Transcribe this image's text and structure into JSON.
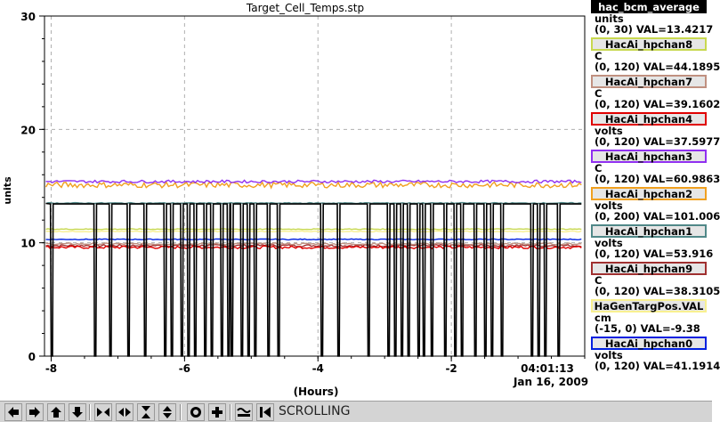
{
  "chart_data": {
    "type": "line",
    "title": "Target_Cell_Temps.stp",
    "xlabel": "(Hours)",
    "ylabel": "units",
    "xlim": [
      -8.1,
      0
    ],
    "ylim": [
      0,
      30
    ],
    "x_ticks": [
      -8,
      -6,
      -4,
      -2
    ],
    "x_tick_labels": [
      "-8",
      "-6",
      "-4",
      "-2"
    ],
    "y_ticks": [
      0,
      10,
      20,
      30
    ],
    "y_tick_labels": [
      "0",
      "10",
      "20",
      "30"
    ],
    "grid": true,
    "timestamp_time": "04:01:13",
    "timestamp_date": "Jan 16, 2009",
    "dropout_times": [
      -8.0,
      -7.35,
      -7.12,
      -6.85,
      -6.6,
      -6.3,
      -6.2,
      -6.05,
      -5.95,
      -5.85,
      -5.7,
      -5.6,
      -5.45,
      -5.35,
      -5.3,
      -5.15,
      -5.05,
      -4.95,
      -4.75,
      -4.6,
      -3.95,
      -3.7,
      -3.25,
      -2.95,
      -2.85,
      -2.75,
      -2.65,
      -2.5,
      -2.42,
      -2.3,
      -2.1,
      -1.95,
      -1.85,
      -1.65,
      -1.5,
      -1.4,
      -1.25,
      -0.8,
      -0.7,
      -0.6,
      -0.4
    ],
    "series": [
      {
        "name": "HacAi_hpchan8",
        "color": "#c8d850",
        "values": [
          11.2
        ]
      },
      {
        "name": "HacAi_hpchan7",
        "color": "#c09080",
        "values": [
          9.9
        ]
      },
      {
        "name": "HacAi_hpchan4",
        "color": "#e00000",
        "values": [
          9.6
        ]
      },
      {
        "name": "HacAi_hpchan3",
        "color": "#9030f0",
        "values": [
          15.4
        ]
      },
      {
        "name": "HacAi_hpchan2",
        "color": "#f0a020",
        "values": [
          15.1
        ]
      },
      {
        "name": "HacAi_hpchan1",
        "color": "#508888",
        "values": [
          13.5
        ]
      },
      {
        "name": "HacAi_hpchan9",
        "color": "#a03030",
        "values": [
          9.75
        ]
      },
      {
        "name": "HaGenTargPos.VAL",
        "color": "#f8f090",
        "values": [
          11.0
        ]
      },
      {
        "name": "HacAi_hpchan0",
        "color": "#0020e0",
        "values": [
          10.3
        ]
      },
      {
        "name": "hac_bcm_average",
        "color": "#000000",
        "values": [
          13.42
        ]
      }
    ]
  },
  "legend": [
    {
      "name": "hac_bcm_average",
      "unit": "units",
      "range": "(0, 30) VAL=13.4217",
      "color": "#000000"
    },
    {
      "name": "HacAi_hpchan8",
      "unit": "C",
      "range": "(0, 120) VAL=44.1895",
      "color": "#c8d850"
    },
    {
      "name": "HacAi_hpchan7",
      "unit": "C",
      "range": "(0, 120) VAL=39.1602",
      "color": "#c09080"
    },
    {
      "name": "HacAi_hpchan4",
      "unit": "volts",
      "range": "(0, 120) VAL=37.5977",
      "color": "#e00000"
    },
    {
      "name": "HacAi_hpchan3",
      "unit": "C",
      "range": "(0, 120) VAL=60.9863",
      "color": "#9030f0"
    },
    {
      "name": "HacAi_hpchan2",
      "unit": "volts",
      "range": "(0, 200) VAL=101.006",
      "color": "#f0a020"
    },
    {
      "name": "HacAi_hpchan1",
      "unit": "volts",
      "range": "(0, 120) VAL=53.916",
      "color": "#508888"
    },
    {
      "name": "HacAi_hpchan9",
      "unit": "C",
      "range": "(0, 120) VAL=38.3105",
      "color": "#a03030"
    },
    {
      "name": "HaGenTargPos.VAL",
      "unit": "cm",
      "range": "(-15, 0) VAL=-9.38",
      "color": "#f8f090"
    },
    {
      "name": "HacAi_hpchan0",
      "unit": "volts",
      "range": "(0, 120) VAL=41.1914",
      "color": "#0020e0"
    }
  ],
  "toolbar": {
    "status": "SCROLLING",
    "buttons": [
      "arrow-left-icon",
      "arrow-right-icon",
      "arrow-up-icon",
      "arrow-down-icon",
      "compress-horizontal-icon",
      "expand-horizontal-icon",
      "compress-vertical-icon",
      "expand-vertical-icon",
      "record-icon",
      "plus-icon",
      "autoscale-icon",
      "rewind-icon"
    ]
  }
}
